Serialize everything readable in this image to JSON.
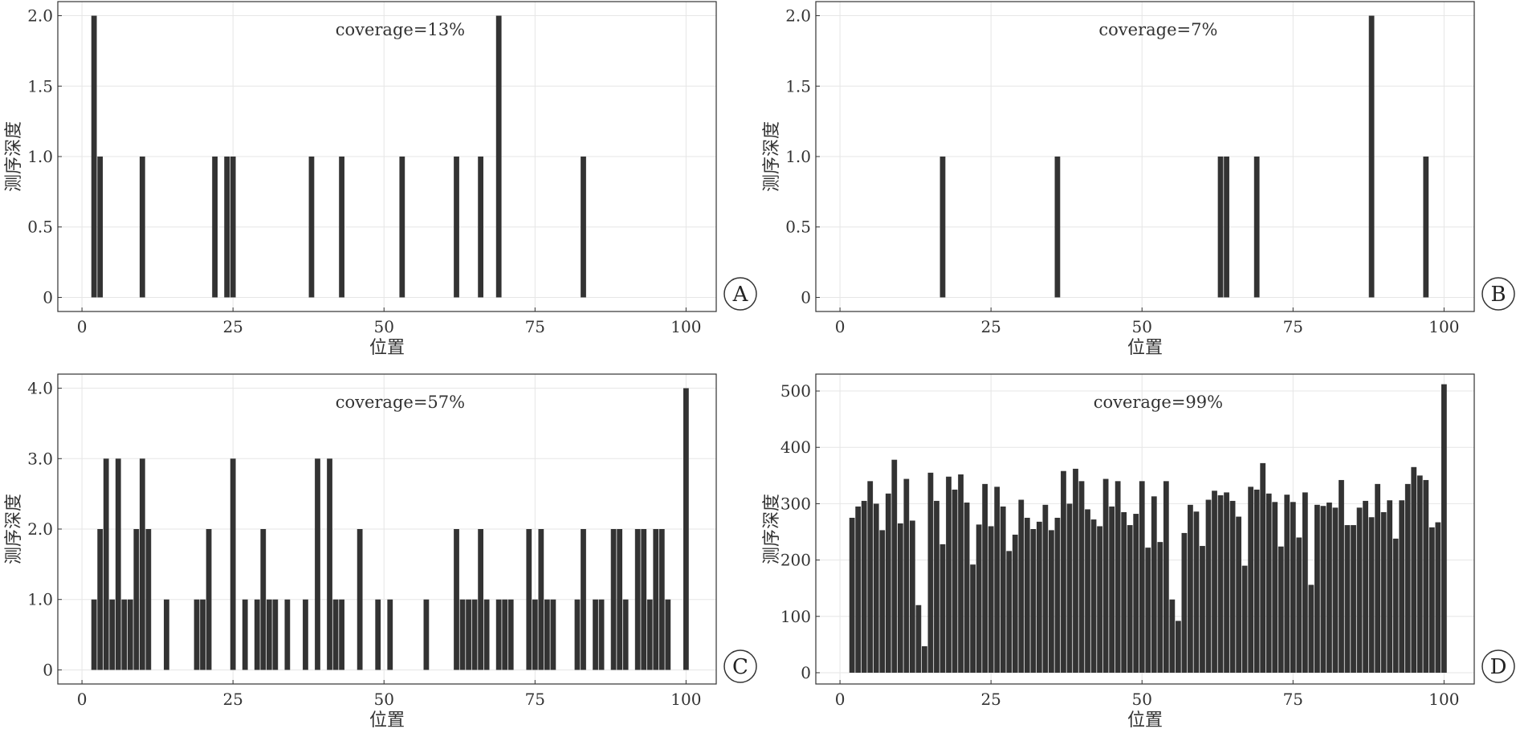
{
  "figure": {
    "bar_color": "#333333",
    "grid": true,
    "panels_layout": "2x2"
  },
  "chart_data": [
    {
      "type": "bar",
      "panel_label": "A",
      "annotation": "coverage=13%",
      "xlabel": "位置",
      "ylabel": "测序深度",
      "xlim": [
        -4,
        105
      ],
      "ylim": [
        -0.1,
        2.1
      ],
      "xticks": [
        0,
        25,
        50,
        75,
        100
      ],
      "xtick_labels": [
        "0",
        "25",
        "50",
        "75",
        "100"
      ],
      "yticks": [
        0,
        0.5,
        1,
        1.5,
        2
      ],
      "ytick_labels": [
        "0",
        "0.5",
        "1.0",
        "1.5",
        "2.0"
      ],
      "x": [
        2,
        3,
        10,
        22,
        24,
        25,
        38,
        43,
        53,
        62,
        66,
        69,
        83
      ],
      "values": [
        2,
        1,
        1,
        1,
        1,
        1,
        1,
        1,
        1,
        1,
        1,
        2,
        1
      ]
    },
    {
      "type": "bar",
      "panel_label": "B",
      "annotation": "coverage=7%",
      "xlabel": "位置",
      "ylabel": "测序深度",
      "xlim": [
        -4,
        105
      ],
      "ylim": [
        -0.1,
        2.1
      ],
      "xticks": [
        0,
        25,
        50,
        75,
        100
      ],
      "xtick_labels": [
        "0",
        "25",
        "50",
        "75",
        "100"
      ],
      "yticks": [
        0,
        0.5,
        1,
        1.5,
        2
      ],
      "ytick_labels": [
        "0",
        "0.5",
        "1.0",
        "1.5",
        "2.0"
      ],
      "x": [
        17,
        36,
        63,
        64,
        69,
        88,
        97
      ],
      "values": [
        1,
        1,
        1,
        1,
        1,
        2,
        1
      ]
    },
    {
      "type": "bar",
      "panel_label": "C",
      "annotation": "coverage=57%",
      "xlabel": "位置",
      "ylabel": "测序深度",
      "xlim": [
        -4,
        105
      ],
      "ylim": [
        -0.2,
        4.2
      ],
      "xticks": [
        0,
        25,
        50,
        75,
        100
      ],
      "xtick_labels": [
        "0",
        "25",
        "50",
        "75",
        "100"
      ],
      "yticks": [
        0,
        1,
        2,
        3,
        4
      ],
      "ytick_labels": [
        "0",
        "1.0",
        "2.0",
        "3.0",
        "4.0"
      ],
      "x": [
        2,
        3,
        4,
        5,
        6,
        7,
        8,
        9,
        10,
        11,
        14,
        19,
        20,
        21,
        25,
        27,
        29,
        30,
        31,
        32,
        34,
        37,
        39,
        41,
        42,
        43,
        46,
        49,
        51,
        57,
        62,
        63,
        64,
        65,
        66,
        67,
        69,
        70,
        71,
        74,
        75,
        76,
        77,
        78,
        82,
        83,
        85,
        86,
        88,
        89,
        90,
        92,
        93,
        94,
        95,
        96,
        97,
        100
      ],
      "values": [
        1,
        2,
        3,
        1,
        3,
        1,
        1,
        2,
        3,
        2,
        1,
        1,
        1,
        2,
        3,
        1,
        1,
        2,
        1,
        1,
        1,
        1,
        3,
        3,
        1,
        1,
        2,
        1,
        1,
        1,
        2,
        1,
        1,
        1,
        2,
        1,
        1,
        1,
        1,
        2,
        1,
        2,
        1,
        1,
        1,
        2,
        1,
        1,
        2,
        2,
        1,
        2,
        2,
        1,
        2,
        2,
        1,
        4
      ]
    },
    {
      "type": "bar",
      "panel_label": "D",
      "annotation": "coverage=99%",
      "xlabel": "位置",
      "ylabel": "测序深度",
      "xlim": [
        -4,
        105
      ],
      "ylim": [
        -20,
        530
      ],
      "xticks": [
        0,
        25,
        50,
        75,
        100
      ],
      "xtick_labels": [
        "0",
        "25",
        "50",
        "75",
        "100"
      ],
      "yticks": [
        0,
        100,
        200,
        300,
        400,
        500
      ],
      "ytick_labels": [
        "0",
        "100",
        "200",
        "300",
        "400",
        "500"
      ],
      "x": [
        2,
        3,
        4,
        5,
        6,
        7,
        8,
        9,
        10,
        11,
        12,
        13,
        14,
        15,
        16,
        17,
        18,
        19,
        20,
        21,
        22,
        23,
        24,
        25,
        26,
        27,
        28,
        29,
        30,
        31,
        32,
        33,
        34,
        35,
        36,
        37,
        38,
        39,
        40,
        41,
        42,
        43,
        44,
        45,
        46,
        47,
        48,
        49,
        50,
        51,
        52,
        53,
        54,
        55,
        56,
        57,
        58,
        59,
        60,
        61,
        62,
        63,
        64,
        65,
        66,
        67,
        68,
        69,
        70,
        71,
        72,
        73,
        74,
        75,
        76,
        77,
        78,
        79,
        80,
        81,
        82,
        83,
        84,
        85,
        86,
        87,
        88,
        89,
        90,
        91,
        92,
        93,
        94,
        95,
        96,
        97,
        98,
        99,
        100
      ],
      "values": [
        275,
        295,
        305,
        340,
        300,
        253,
        318,
        378,
        265,
        344,
        270,
        120,
        47,
        355,
        305,
        228,
        348,
        325,
        352,
        302,
        192,
        263,
        335,
        260,
        330,
        295,
        216,
        245,
        307,
        275,
        255,
        268,
        298,
        253,
        275,
        358,
        300,
        362,
        340,
        290,
        272,
        260,
        344,
        295,
        340,
        285,
        262,
        282,
        340,
        222,
        313,
        232,
        340,
        130,
        92,
        248,
        298,
        286,
        225,
        307,
        323,
        315,
        320,
        305,
        277,
        190,
        330,
        325,
        372,
        318,
        303,
        224,
        316,
        303,
        240,
        320,
        156,
        298,
        296,
        302,
        293,
        342,
        262,
        262,
        293,
        305,
        276,
        335,
        285,
        306,
        238,
        306,
        335,
        365,
        350,
        342,
        258,
        267,
        512
      ]
    }
  ]
}
